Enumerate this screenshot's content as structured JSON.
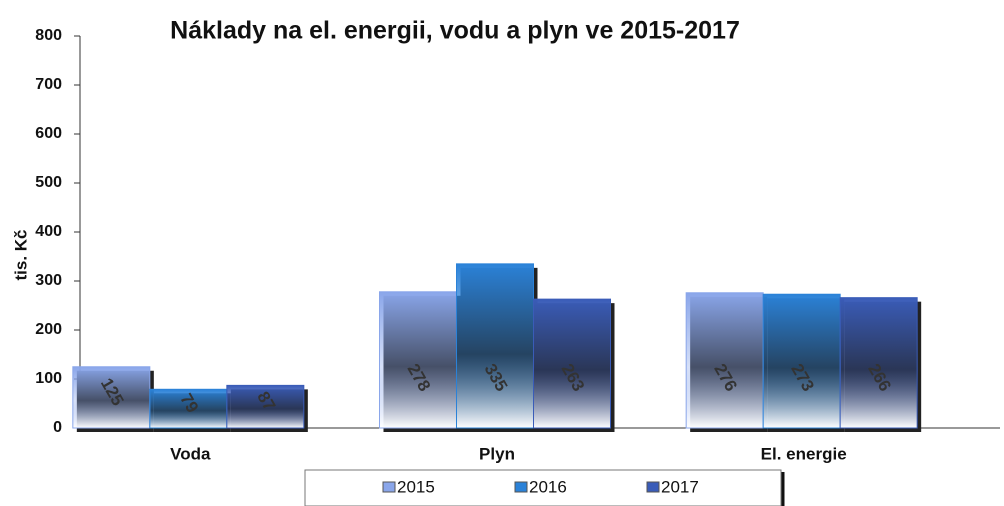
{
  "chart_data": {
    "type": "bar",
    "title": "Náklady na el. energii, vodu a plyn ve 2015-2017",
    "y_label": "tis. Kč",
    "categories": [
      "Voda",
      "Plyn",
      "El. energie"
    ],
    "series": [
      {
        "name": "2015",
        "color": "#8aa6ea",
        "values": [
          125,
          278,
          276
        ]
      },
      {
        "name": "2016",
        "color": "#2b82d8",
        "values": [
          79,
          335,
          273
        ]
      },
      {
        "name": "2017",
        "color": "#3a5cb8",
        "values": [
          87,
          263,
          266
        ]
      }
    ],
    "ylim": [
      0,
      800
    ],
    "yticks": [
      0,
      100,
      200,
      300,
      400,
      500,
      600,
      700,
      800
    ]
  }
}
